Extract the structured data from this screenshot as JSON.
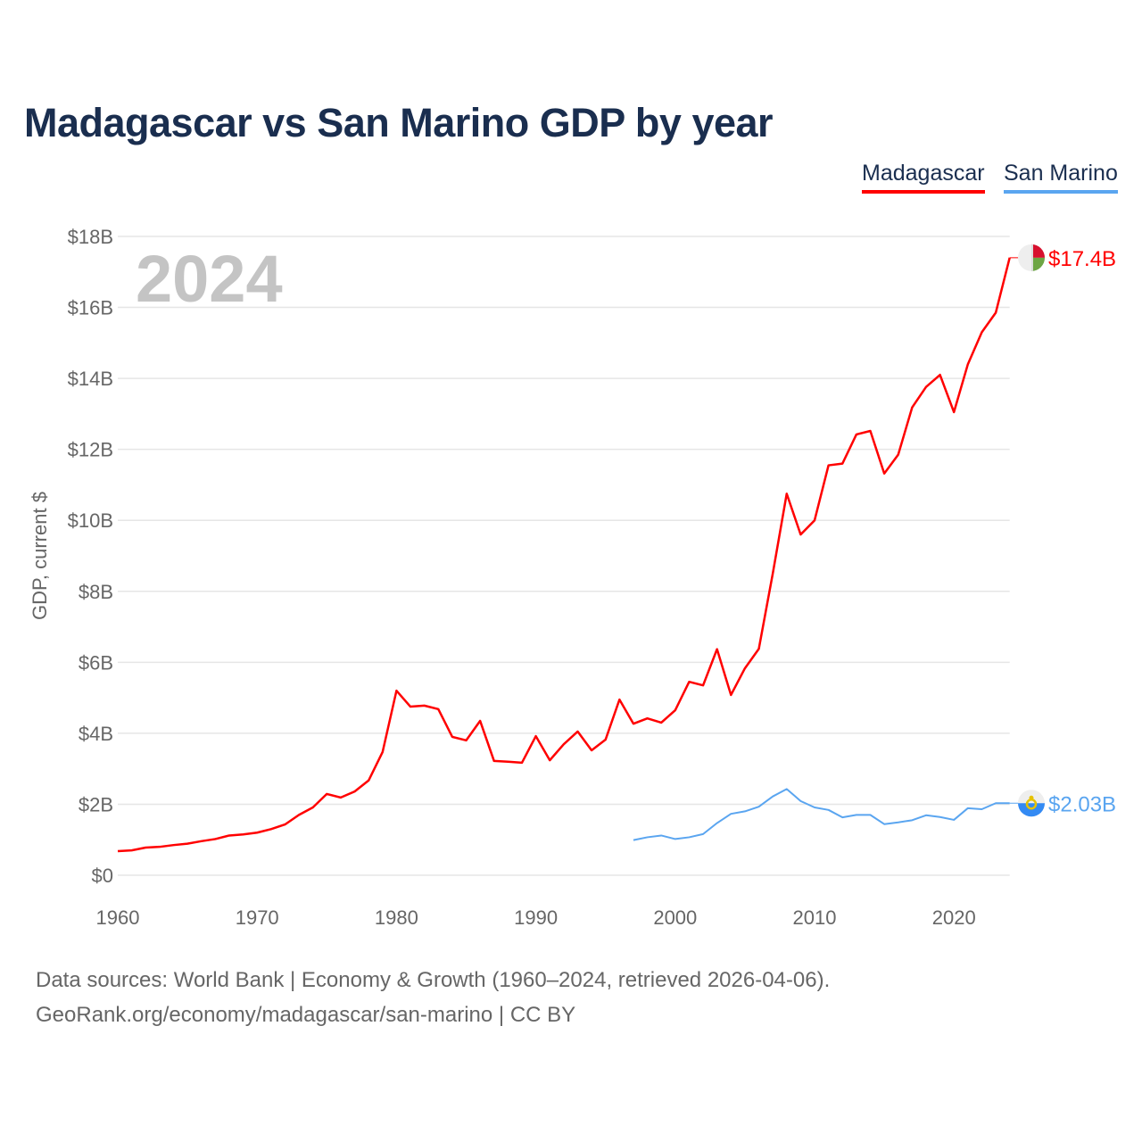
{
  "title": "Madagascar vs San Marino GDP by year",
  "legend": [
    {
      "name": "Madagascar",
      "color": "#ff0000"
    },
    {
      "name": "San Marino",
      "color": "#5aa5f0"
    }
  ],
  "footer": {
    "line1": "Data sources: World Bank | Economy & Growth (1960–2024, retrieved 2026-04-06).",
    "line2": "GeoRank.org/economy/madagascar/san-marino | CC BY"
  },
  "chart_data": {
    "type": "line",
    "title": "Madagascar vs San Marino GDP by year",
    "xlabel": "",
    "ylabel": "GDP, current $",
    "year_label": "2024",
    "xlim": [
      1960,
      2024
    ],
    "ylim": [
      0,
      18
    ],
    "x_ticks": [
      1960,
      1970,
      1980,
      1990,
      2000,
      2010,
      2020
    ],
    "y_ticks": [
      {
        "v": 0,
        "label": "$0"
      },
      {
        "v": 2,
        "label": "$2B"
      },
      {
        "v": 4,
        "label": "$4B"
      },
      {
        "v": 6,
        "label": "$6B"
      },
      {
        "v": 8,
        "label": "$8B"
      },
      {
        "v": 10,
        "label": "$10B"
      },
      {
        "v": 12,
        "label": "$12B"
      },
      {
        "v": 14,
        "label": "$14B"
      },
      {
        "v": 16,
        "label": "$16B"
      },
      {
        "v": 18,
        "label": "$18B"
      }
    ],
    "grid": true,
    "legend_position": "top-right",
    "units": "billions USD",
    "series": [
      {
        "name": "Madagascar",
        "color": "#ff0000",
        "end_label": "$17.4B",
        "start_year": 1960,
        "values": [
          0.68,
          0.7,
          0.78,
          0.8,
          0.85,
          0.89,
          0.96,
          1.02,
          1.12,
          1.15,
          1.2,
          1.3,
          1.43,
          1.7,
          1.91,
          2.29,
          2.19,
          2.36,
          2.67,
          3.47,
          5.2,
          4.75,
          4.78,
          4.68,
          3.9,
          3.8,
          4.35,
          3.22,
          3.2,
          3.17,
          3.92,
          3.24,
          3.69,
          4.05,
          3.52,
          3.82,
          4.95,
          4.27,
          4.42,
          4.3,
          4.65,
          5.45,
          5.35,
          6.37,
          5.08,
          5.83,
          6.38,
          8.5,
          10.75,
          9.6,
          10.0,
          11.55,
          11.6,
          12.42,
          12.52,
          11.32,
          11.85,
          13.18,
          13.76,
          14.1,
          13.05,
          14.4,
          15.3,
          15.85,
          17.4
        ]
      },
      {
        "name": "San Marino",
        "color": "#5aa5f0",
        "end_label": "$2.03B",
        "start_year": 1997,
        "values": [
          0.99,
          1.07,
          1.12,
          1.02,
          1.07,
          1.16,
          1.47,
          1.73,
          1.8,
          1.93,
          2.22,
          2.43,
          2.09,
          1.91,
          1.84,
          1.63,
          1.7,
          1.7,
          1.44,
          1.49,
          1.55,
          1.69,
          1.64,
          1.56,
          1.89,
          1.86,
          2.03,
          2.03
        ]
      }
    ]
  }
}
